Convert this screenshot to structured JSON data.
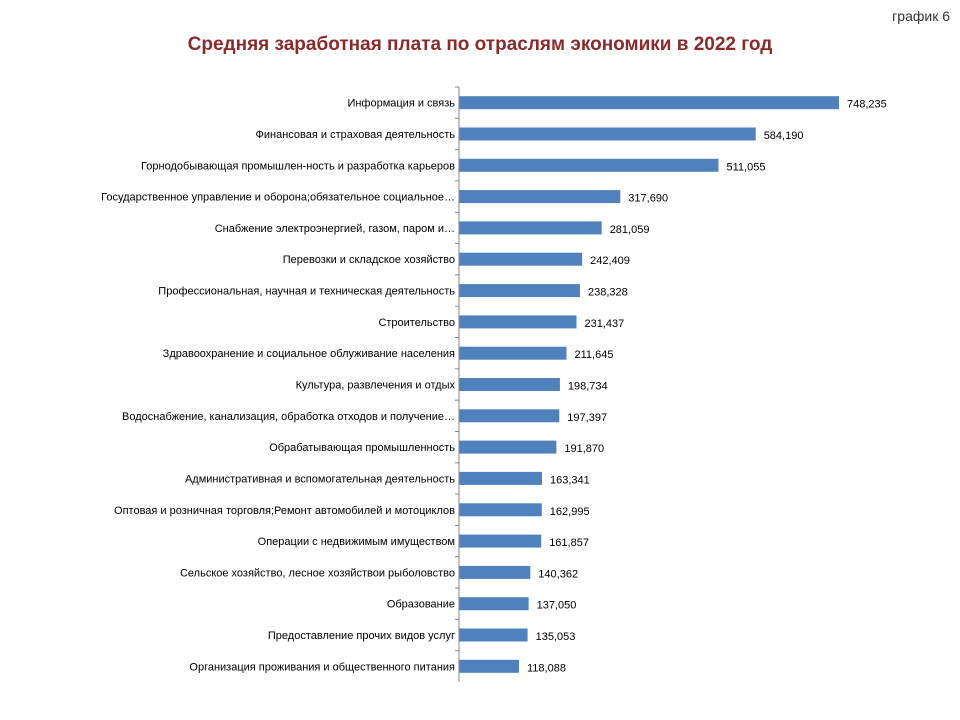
{
  "corner_label": "график 6",
  "chart_data": {
    "type": "bar",
    "orientation": "horizontal",
    "title": "Средняя заработная плата по отраслям экономики в 2022 год",
    "xlabel": "",
    "ylabel": "",
    "grid": false,
    "legend": "none",
    "bar_color": "#4f81bd",
    "categories": [
      "Информация и связь",
      "Финансовая и страховая деятельность",
      "Горнодобывающая промышлен-ность и разработка карьеров",
      "Государственное управление и оборона;обязательное социальное…",
      "Снабжение электроэнергией, газом, паром и…",
      "Перевозки и складское хозяйство",
      "Профессиональная, научная и техническая деятельность",
      "Строительство",
      "Здравоохранение и социальное облуживание населения",
      "Культура, развлечения и отдых",
      "Водоснабжение, канализация, обработка отходов и получение…",
      "Обрабатывающая промышленность",
      "Административная и вспомогательная деятельность",
      "Оптовая и розничная торговля;Ремонт автомобилей и мотоциклов",
      "Операции с недвижимым имуществом",
      "Сельское хозяйство, лесное хозяйствои рыболовство",
      "Образование",
      "Предоставление прочих видов услуг",
      "Организация проживания и общественного питания"
    ],
    "values": [
      748.235,
      584.19,
      511.055,
      317.69,
      281.059,
      242.409,
      238.328,
      231.437,
      211.645,
      198.734,
      197.397,
      191.87,
      163.341,
      162.995,
      161.857,
      140.362,
      137.05,
      135.053,
      118.088
    ],
    "value_labels": [
      "748,235",
      "584,190",
      "511,055",
      "317,690",
      "281,059",
      "242,409",
      "238,328",
      "231,437",
      "211,645",
      "198,734",
      "197,397",
      "191,870",
      "163,341",
      "162,995",
      "161,857",
      "140,362",
      "137,050",
      "135,053",
      "118,088"
    ],
    "xlim": [
      0,
      748.235
    ]
  }
}
